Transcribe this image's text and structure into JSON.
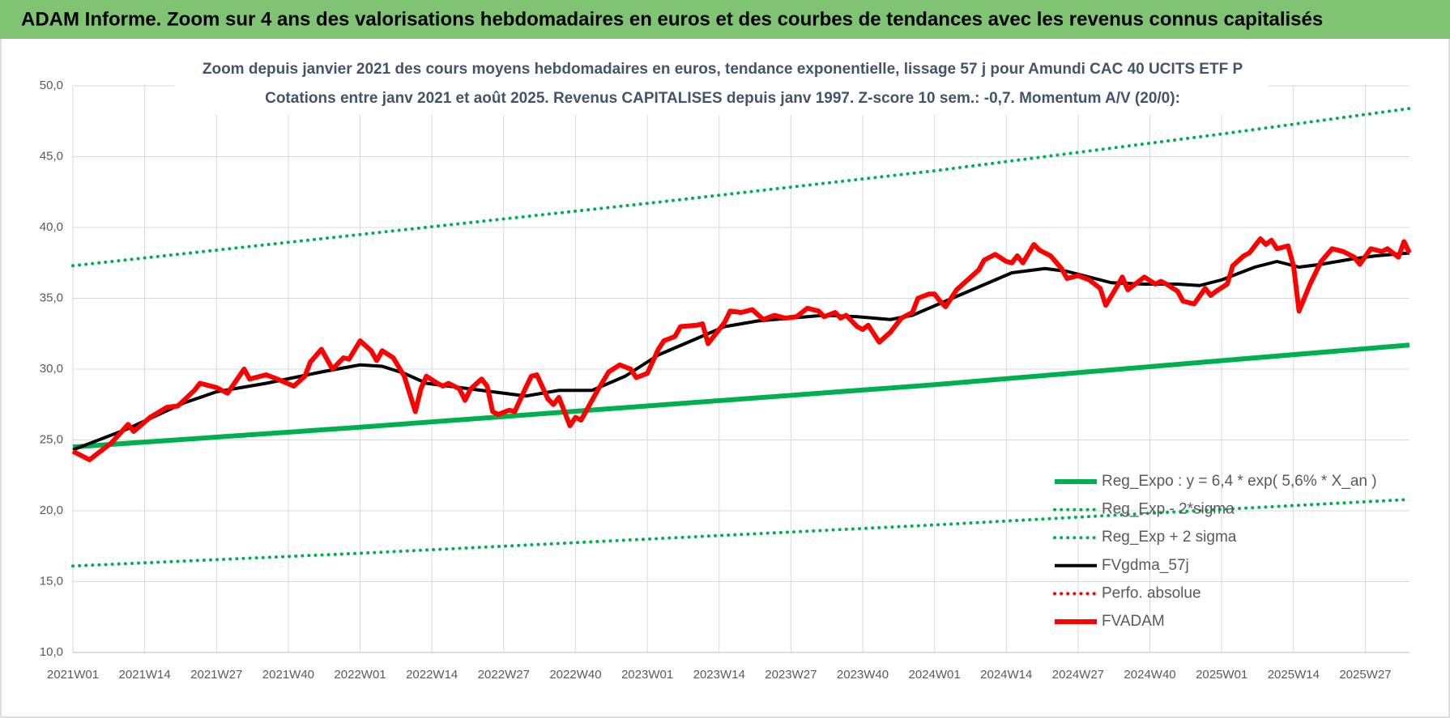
{
  "header": {
    "title": "ADAM Informe. Zoom sur 4 ans des valorisations hebdomadaires en euros et des courbes de tendances avec les revenus connus capitalisés"
  },
  "chart_data": {
    "type": "line",
    "subtitle": [
      "Zoom depuis janvier 2021 des cours moyens hebdomadaires en euros, tendance exponentielle, lissage 57 j pour Amundi CAC 40 UCITS ETF P",
      "Cotations entre janv 2021 et août 2025.  Revenus CAPITALISES depuis janv 1997. Z-score 10 sem.: -0,7. Momentum A/V (20/0):"
    ],
    "xlim": [
      0,
      242
    ],
    "ylim": [
      10,
      50
    ],
    "xticks": [
      {
        "value": 0,
        "label": "2021W01"
      },
      {
        "value": 13,
        "label": "2021W14"
      },
      {
        "value": 26,
        "label": "2021W27"
      },
      {
        "value": 39,
        "label": "2021W40"
      },
      {
        "value": 52,
        "label": "2022W01"
      },
      {
        "value": 65,
        "label": "2022W14"
      },
      {
        "value": 78,
        "label": "2022W27"
      },
      {
        "value": 91,
        "label": "2022W40"
      },
      {
        "value": 104,
        "label": "2023W01"
      },
      {
        "value": 117,
        "label": "2023W14"
      },
      {
        "value": 130,
        "label": "2023W27"
      },
      {
        "value": 143,
        "label": "2023W40"
      },
      {
        "value": 156,
        "label": "2024W01"
      },
      {
        "value": 169,
        "label": "2024W14"
      },
      {
        "value": 182,
        "label": "2024W27"
      },
      {
        "value": 195,
        "label": "2024W40"
      },
      {
        "value": 208,
        "label": "2025W01"
      },
      {
        "value": 221,
        "label": "2025W14"
      },
      {
        "value": 234,
        "label": "2025W27"
      }
    ],
    "yticks": [
      {
        "value": 10,
        "label": "10,0"
      },
      {
        "value": 15,
        "label": "15,0"
      },
      {
        "value": 20,
        "label": "20,0"
      },
      {
        "value": 25,
        "label": "25,0"
      },
      {
        "value": 30,
        "label": "30,0"
      },
      {
        "value": 35,
        "label": "35,0"
      },
      {
        "value": 40,
        "label": "40,0"
      },
      {
        "value": 45,
        "label": "45,0"
      },
      {
        "value": 50,
        "label": "50,0"
      }
    ],
    "grid": true,
    "legend": "lower right",
    "series": [
      {
        "name": "Reg_Expo : y = 6,4 * exp( 5,6% *  X_an )",
        "color": "#00b050",
        "style": "solid",
        "width": 6,
        "x": [
          0,
          52,
          104,
          156,
          208,
          242
        ],
        "values": [
          24.5,
          25.9,
          27.4,
          28.9,
          30.6,
          31.7
        ]
      },
      {
        "name": "Reg_Exp - 2*sigma",
        "color": "#00b050",
        "style": "dotted",
        "width": 4,
        "x": [
          0,
          52,
          104,
          156,
          208,
          242
        ],
        "values": [
          16.1,
          17.0,
          18.0,
          19.0,
          20.1,
          20.8
        ]
      },
      {
        "name": "Reg_Exp + 2 sigma",
        "color": "#00b050",
        "style": "dotted",
        "width": 4,
        "x": [
          0,
          52,
          104,
          156,
          208,
          242
        ],
        "values": [
          37.3,
          39.5,
          41.7,
          44.0,
          46.6,
          48.4
        ]
      },
      {
        "name": "FVgdma_57j",
        "color": "#000000",
        "style": "solid",
        "width": 4,
        "x": [
          0,
          10,
          20,
          26,
          35,
          45,
          52,
          56,
          60,
          64,
          70,
          76,
          82,
          88,
          94,
          100,
          106,
          112,
          118,
          124,
          130,
          136,
          142,
          148,
          152,
          158,
          164,
          170,
          176,
          180,
          184,
          188,
          194,
          200,
          204,
          208,
          214,
          218,
          222,
          226,
          232,
          236,
          242
        ],
        "values": [
          24.3,
          25.8,
          27.6,
          28.4,
          29.0,
          29.8,
          30.3,
          30.2,
          29.7,
          29.0,
          28.7,
          28.4,
          28.1,
          28.5,
          28.5,
          29.5,
          31.0,
          32.0,
          33.0,
          33.4,
          33.6,
          33.8,
          33.7,
          33.5,
          33.8,
          34.8,
          35.8,
          36.8,
          37.1,
          36.9,
          36.5,
          36.1,
          36.0,
          36.0,
          35.9,
          36.3,
          37.2,
          37.6,
          37.2,
          37.4,
          37.8,
          38.0,
          38.2
        ]
      },
      {
        "name": "Perfo. absolue",
        "color": "#ff0000",
        "style": "dotted",
        "width": 4,
        "x": [],
        "values": []
      },
      {
        "name": "FVADAM",
        "color": "#ff0000",
        "style": "solid",
        "width": 6,
        "x": [
          0,
          3,
          7,
          10,
          11,
          14,
          17,
          19,
          22,
          23,
          26,
          28,
          31,
          32,
          35,
          37,
          40,
          42,
          43,
          45,
          47,
          49,
          50,
          52,
          54,
          55,
          56,
          58,
          60,
          62,
          63,
          64,
          66,
          67,
          68,
          70,
          71,
          72,
          74,
          75,
          76,
          77,
          79,
          80,
          82,
          83,
          84,
          86,
          87,
          88,
          90,
          91,
          92,
          94,
          95,
          97,
          99,
          101,
          102,
          104,
          106,
          107,
          109,
          110,
          113,
          114,
          115,
          116,
          118,
          119,
          121,
          123,
          125,
          127,
          129,
          131,
          133,
          135,
          136,
          138,
          139,
          140,
          142,
          143,
          144,
          146,
          148,
          150,
          152,
          153,
          155,
          156,
          157,
          158,
          160,
          162,
          164,
          165,
          167,
          169,
          170,
          171,
          172,
          174,
          175,
          177,
          179,
          180,
          182,
          184,
          186,
          187,
          189,
          190,
          191,
          194,
          196,
          197,
          198,
          200,
          201,
          203,
          205,
          206,
          207,
          209,
          210,
          212,
          213,
          215,
          216,
          217,
          218,
          220,
          221,
          222,
          224,
          226,
          228,
          230,
          232,
          233,
          235,
          237,
          238,
          240,
          241,
          242
        ],
        "values": [
          24.2,
          23.6,
          24.8,
          26.1,
          25.6,
          26.6,
          27.3,
          27.4,
          28.5,
          29.0,
          28.7,
          28.3,
          30.0,
          29.3,
          29.6,
          29.3,
          28.8,
          29.5,
          30.5,
          31.4,
          30.0,
          30.8,
          30.7,
          32.0,
          31.3,
          30.6,
          31.3,
          30.8,
          29.5,
          27.0,
          28.6,
          29.5,
          29.0,
          28.8,
          29.0,
          28.6,
          27.8,
          28.6,
          29.3,
          28.8,
          27.0,
          26.8,
          27.1,
          27.0,
          28.7,
          29.5,
          29.6,
          27.9,
          27.5,
          28.0,
          26.0,
          26.6,
          26.4,
          27.8,
          28.5,
          29.8,
          30.3,
          30.0,
          29.4,
          29.7,
          31.4,
          32.0,
          32.3,
          33.0,
          33.1,
          33.2,
          31.8,
          32.3,
          33.3,
          34.1,
          34.0,
          34.2,
          33.5,
          33.8,
          33.6,
          33.7,
          34.3,
          34.1,
          33.7,
          34.0,
          33.6,
          33.8,
          33.0,
          32.8,
          33.1,
          31.9,
          32.6,
          33.6,
          34.0,
          35.0,
          35.3,
          35.3,
          34.8,
          34.4,
          35.6,
          36.3,
          37.0,
          37.7,
          38.1,
          37.6,
          37.5,
          38.0,
          37.5,
          38.8,
          38.4,
          38.0,
          37.1,
          36.4,
          36.6,
          36.3,
          35.7,
          34.5,
          35.8,
          36.5,
          35.6,
          36.5,
          36.0,
          36.2,
          36.0,
          35.5,
          34.8,
          34.6,
          35.7,
          35.2,
          35.5,
          36.0,
          37.3,
          38.0,
          38.2,
          39.2,
          38.8,
          39.1,
          38.5,
          38.7,
          37.3,
          34.1,
          36.0,
          37.6,
          38.5,
          38.3,
          37.9,
          37.4,
          38.5,
          38.3,
          38.5,
          37.9,
          39.0,
          38.2
        ]
      }
    ]
  }
}
